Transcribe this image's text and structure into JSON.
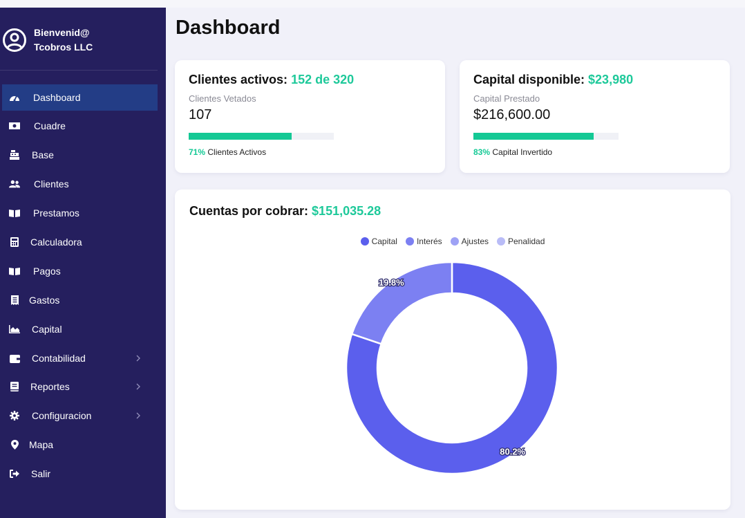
{
  "user": {
    "greeting": "Bienvenid@",
    "company": "Tcobros LLC"
  },
  "sidebar": {
    "items": [
      {
        "label": "Dashboard",
        "icon": "gauge-icon",
        "active": true,
        "has_submenu": false
      },
      {
        "label": "Cuadre",
        "icon": "money-bill-icon",
        "active": false,
        "has_submenu": false
      },
      {
        "label": "Base",
        "icon": "cash-register-icon",
        "active": false,
        "has_submenu": false
      },
      {
        "label": "Clientes",
        "icon": "users-icon",
        "active": false,
        "has_submenu": false
      },
      {
        "label": "Prestamos",
        "icon": "book-open-icon",
        "active": false,
        "has_submenu": false
      },
      {
        "label": "Calculadora",
        "icon": "calculator-icon",
        "active": false,
        "has_submenu": false
      },
      {
        "label": "Pagos",
        "icon": "book-open-icon",
        "active": false,
        "has_submenu": false
      },
      {
        "label": "Gastos",
        "icon": "receipt-icon",
        "active": false,
        "has_submenu": false
      },
      {
        "label": "Capital",
        "icon": "area-chart-icon",
        "active": false,
        "has_submenu": false
      },
      {
        "label": "Contabilidad",
        "icon": "wallet-icon",
        "active": false,
        "has_submenu": true
      },
      {
        "label": "Reportes",
        "icon": "book-icon",
        "active": false,
        "has_submenu": true
      },
      {
        "label": "Configuracion",
        "icon": "gear-icon",
        "active": false,
        "has_submenu": true
      },
      {
        "label": "Mapa",
        "icon": "map-pin-icon",
        "active": false,
        "has_submenu": false
      },
      {
        "label": "Salir",
        "icon": "sign-out-icon",
        "active": false,
        "has_submenu": false
      }
    ]
  },
  "page": {
    "title": "Dashboard"
  },
  "cards": {
    "clients": {
      "title": "Clientes activos:",
      "highlight": "152 de 320",
      "sub_label": "Clientes Vetados",
      "sub_value": "107",
      "progress_fraction": 0.71,
      "footer_pct": "71%",
      "footer_text": "Clientes Activos"
    },
    "capital": {
      "title": "Capital disponible:",
      "highlight": "$23,980",
      "sub_label": "Capital Prestado",
      "sub_value": "$216,600.00",
      "progress_fraction": 0.83,
      "footer_pct": "83%",
      "footer_text": "Capital Invertido"
    }
  },
  "receivables": {
    "title": "Cuentas por cobrar:",
    "highlight": "$151,035.28"
  },
  "colors": {
    "accent_green": "#14c995",
    "sidebar_bg": "#251f5e",
    "sidebar_active": "#233d86"
  },
  "chart_data": {
    "type": "pie",
    "donut": true,
    "legend_position": "top",
    "title": "",
    "categories": [
      "Capital",
      "Interés",
      "Ajustes",
      "Penalidad"
    ],
    "values": [
      80.2,
      19.8,
      0,
      0
    ],
    "value_labels": [
      "80.2%",
      "19.8%",
      "",
      ""
    ],
    "colors": [
      "#5b5fed",
      "#7c80f2",
      "#9ea2f5",
      "#b9bcf7"
    ]
  }
}
